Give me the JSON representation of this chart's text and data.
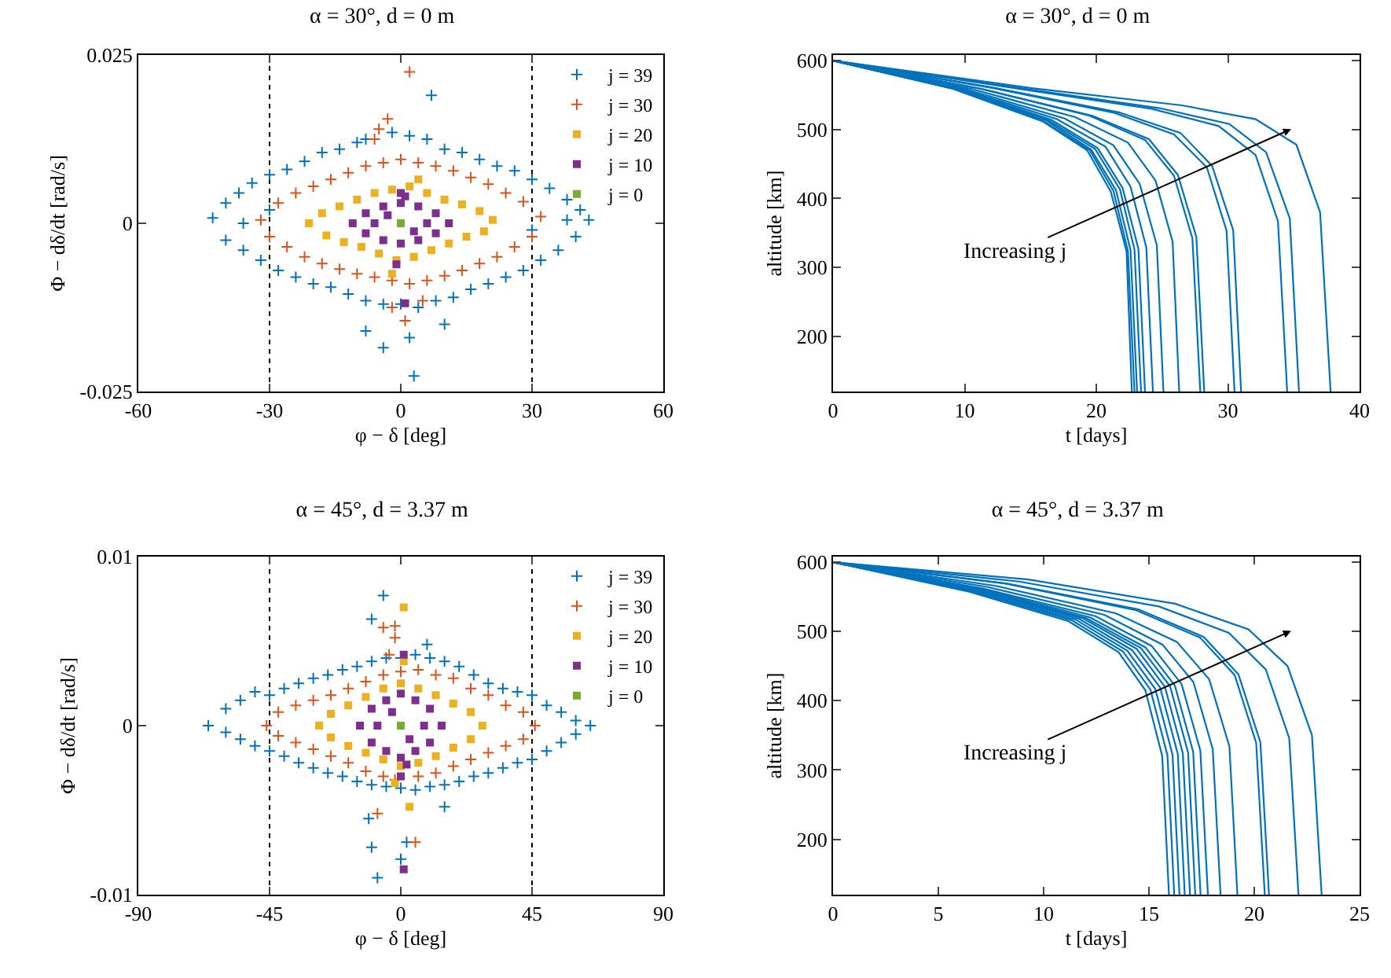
{
  "chart_data": [
    {
      "type": "scatter",
      "title": "α = 30°, d = 0 m",
      "xlabel": "φ − δ [deg]",
      "ylabel": "Φ − dδ/dt [rad/s]",
      "xlim": [
        -60,
        60
      ],
      "xticks": [
        -60,
        -30,
        0,
        30,
        60
      ],
      "ylim": [
        -0.025,
        0.025
      ],
      "yticks": [
        -0.025,
        0,
        0.025
      ],
      "legend": "top right",
      "ref_lines": [
        {
          "axis": "x",
          "value": -30,
          "color": "#000000",
          "line_style": "dotted"
        },
        {
          "axis": "x",
          "value": 30,
          "color": "#000000",
          "line_style": "dotted"
        }
      ],
      "series": [
        {
          "name": "j = 39",
          "color": "#0072bd",
          "marker": "cross",
          "x": [
            -43,
            -40,
            -37,
            -34,
            -30,
            -26,
            -22,
            -18,
            -14,
            -10,
            -8,
            -2,
            2,
            6,
            10,
            14,
            18,
            22,
            26,
            30,
            34,
            38,
            41,
            43,
            40,
            36,
            32,
            28,
            24,
            20,
            16,
            12,
            8,
            4,
            0,
            -4,
            -8,
            -12,
            -16,
            -20,
            -24,
            -28,
            -32,
            -36,
            -40,
            7,
            3,
            -4,
            2,
            -8,
            10,
            -30,
            30,
            -36,
            38
          ],
          "values": [
            0.0008,
            0.003,
            0.0045,
            0.006,
            0.0072,
            0.008,
            0.0092,
            0.0105,
            0.011,
            0.012,
            0.0125,
            0.0135,
            0.013,
            0.0125,
            0.011,
            0.0105,
            0.0095,
            0.0085,
            0.0078,
            0.0065,
            0.0052,
            0.0035,
            0.002,
            0.0005,
            -0.002,
            -0.004,
            -0.0055,
            -0.007,
            -0.008,
            -0.009,
            -0.0098,
            -0.011,
            -0.0115,
            -0.0125,
            -0.012,
            -0.012,
            -0.0115,
            -0.0105,
            -0.0095,
            -0.009,
            -0.008,
            -0.007,
            -0.0055,
            -0.004,
            -0.0025,
            0.019,
            -0.0227,
            -0.0185,
            -0.017,
            -0.016,
            -0.015,
            0.002,
            -0.001,
            0,
            0.0005
          ]
        },
        {
          "name": "j = 30",
          "color": "#d95319",
          "marker": "cross",
          "x": [
            -32,
            -28,
            -24,
            -20,
            -16,
            -12,
            -8,
            -4,
            0,
            4,
            8,
            12,
            16,
            20,
            24,
            28,
            32,
            30,
            26,
            22,
            18,
            14,
            10,
            6,
            2,
            -2,
            -6,
            -10,
            -14,
            -18,
            -22,
            -26,
            -30,
            2,
            -3,
            -5,
            -6,
            1,
            -2,
            5
          ],
          "values": [
            0.0005,
            0.003,
            0.0045,
            0.0055,
            0.0065,
            0.0075,
            0.0085,
            0.009,
            0.0095,
            0.009,
            0.0085,
            0.0078,
            0.0068,
            0.0058,
            0.0045,
            0.0032,
            0.001,
            -0.002,
            -0.0035,
            -0.005,
            -0.006,
            -0.007,
            -0.0078,
            -0.0085,
            -0.009,
            -0.0085,
            -0.008,
            -0.0075,
            -0.0068,
            -0.006,
            -0.005,
            -0.0035,
            -0.002,
            0.0225,
            0.0155,
            0.014,
            0.0125,
            -0.0145,
            -0.0125,
            -0.0115
          ]
        },
        {
          "name": "j = 20",
          "color": "#edb120",
          "marker": "square",
          "x": [
            -21,
            -18,
            -14,
            -10,
            -6,
            -2,
            2,
            6,
            10,
            14,
            18,
            21,
            19,
            15,
            11,
            7,
            3,
            -1,
            -5,
            -9,
            -13,
            -17,
            4,
            -2
          ],
          "values": [
            0,
            0.0015,
            0.0025,
            0.0035,
            0.0045,
            0.005,
            0.0055,
            0.0045,
            0.0035,
            0.0028,
            0.0018,
            0.0005,
            -0.0012,
            -0.002,
            -0.003,
            -0.004,
            -0.005,
            -0.0055,
            -0.0045,
            -0.0035,
            -0.0028,
            -0.0018,
            0.0065,
            -0.0075
          ]
        },
        {
          "name": "j = 10",
          "color": "#7e2f8e",
          "marker": "square",
          "x": [
            -11,
            -8,
            -4,
            0,
            4,
            8,
            11,
            8,
            4,
            0,
            -4,
            -8,
            -6,
            6,
            -3,
            3,
            -1,
            1,
            0,
            1
          ],
          "values": [
            0,
            0.0015,
            0.0025,
            0.003,
            0.0025,
            0.0015,
            0,
            -0.0015,
            -0.0025,
            -0.003,
            -0.0025,
            -0.0015,
            0,
            0,
            0.0012,
            -0.0012,
            -0.0061,
            -0.0119,
            0.0045,
            0.004
          ]
        },
        {
          "name": "j = 0",
          "color": "#77ac30",
          "marker": "square",
          "x": [
            0
          ],
          "values": [
            0
          ]
        }
      ]
    },
    {
      "type": "line",
      "title": "α = 30°, d = 0 m",
      "xlabel": "t [days]",
      "ylabel": "altitude [km]",
      "xlim": [
        0,
        40
      ],
      "xticks": [
        0,
        10,
        20,
        30,
        40
      ],
      "ylim": [
        120,
        608
      ],
      "yticks": [
        200,
        300,
        400,
        500,
        600
      ],
      "annotations": [
        "Increasing j"
      ],
      "series": [
        {
          "color": "#0072bd",
          "x": [
            0,
            9.1,
            15.9,
            19.3,
            21.1,
            22.3,
            22.7
          ],
          "values": [
            600,
            559,
            512,
            470,
            410,
            323,
            120
          ]
        },
        {
          "color": "#0072bd",
          "x": [
            0,
            9.2,
            16.0,
            19.5,
            21.3,
            22.4,
            22.9
          ],
          "values": [
            600,
            559,
            512,
            470,
            411,
            324,
            120
          ]
        },
        {
          "color": "#0072bd",
          "x": [
            0,
            9.2,
            16.2,
            19.6,
            21.5,
            22.6,
            23.1
          ],
          "values": [
            600,
            559,
            513,
            471,
            412,
            325,
            120
          ]
        },
        {
          "color": "#0072bd",
          "x": [
            0,
            9.4,
            16.4,
            19.9,
            21.8,
            22.9,
            23.4
          ],
          "values": [
            600,
            559,
            513,
            472,
            413,
            326,
            120
          ]
        },
        {
          "color": "#0072bd",
          "x": [
            0,
            9.5,
            16.6,
            20.1,
            22.0,
            23.2,
            23.7
          ],
          "values": [
            600,
            559,
            514,
            473,
            415,
            327,
            120
          ]
        },
        {
          "color": "#0072bd",
          "x": [
            0,
            9.7,
            17.0,
            20.7,
            22.6,
            23.8,
            24.3
          ],
          "values": [
            600,
            559,
            515,
            475,
            417,
            329,
            120
          ]
        },
        {
          "color": "#0072bd",
          "x": [
            0,
            10.0,
            17.6,
            21.3,
            23.3,
            24.6,
            25.1
          ],
          "values": [
            600,
            559,
            516,
            477,
            421,
            332,
            120
          ]
        },
        {
          "color": "#0072bd",
          "x": [
            0,
            10.5,
            18.4,
            22.4,
            24.5,
            25.8,
            26.3
          ],
          "values": [
            600,
            559,
            518,
            481,
            426,
            337,
            120
          ]
        },
        {
          "color": "#0072bd",
          "x": [
            0,
            11.2,
            19.5,
            23.7,
            25.9,
            27.3,
            27.9
          ],
          "values": [
            600,
            559,
            520,
            485,
            433,
            342,
            120
          ]
        },
        {
          "color": "#0072bd",
          "x": [
            0,
            11.3,
            19.7,
            24.0,
            26.2,
            27.6,
            28.2
          ],
          "values": [
            600,
            559,
            520,
            486,
            434,
            344,
            120
          ]
        },
        {
          "color": "#0072bd",
          "x": [
            0,
            12.2,
            21.4,
            25.9,
            28.4,
            29.9,
            30.5
          ],
          "values": [
            600,
            560,
            524,
            493,
            445,
            353,
            120
          ]
        },
        {
          "color": "#0072bd",
          "x": [
            0,
            12.4,
            21.7,
            26.4,
            28.8,
            30.4,
            31.0
          ],
          "values": [
            600,
            560,
            525,
            495,
            447,
            354,
            120
          ]
        },
        {
          "color": "#0072bd",
          "x": [
            0,
            13.8,
            24.2,
            29.3,
            32.1,
            33.8,
            34.5
          ],
          "values": [
            600,
            560,
            530,
            505,
            463,
            367,
            120
          ]
        },
        {
          "color": "#0072bd",
          "x": [
            0,
            14.2,
            24.8,
            30.1,
            32.9,
            34.7,
            35.4
          ],
          "values": [
            600,
            560,
            531,
            508,
            467,
            371,
            120
          ]
        },
        {
          "color": "#0072bd",
          "x": [
            0,
            15.1,
            26.5,
            32.1,
            35.2,
            37.0,
            37.8
          ],
          "values": [
            600,
            560,
            535,
            515,
            478,
            380,
            120
          ]
        }
      ]
    },
    {
      "type": "scatter",
      "title": "α = 45°, d = 3.37 m",
      "xlabel": "φ − δ [deg]",
      "ylabel": "Φ − dδ/dt [rad/s]",
      "xlim": [
        -90,
        90
      ],
      "xticks": [
        -90,
        -45,
        0,
        45,
        90
      ],
      "ylim": [
        -0.01,
        0.01
      ],
      "yticks": [
        -0.01,
        0,
        0.01
      ],
      "legend": "top right",
      "ref_lines": [
        {
          "axis": "x",
          "value": -45,
          "color": "#000000",
          "line_style": "dotted"
        },
        {
          "axis": "x",
          "value": 45,
          "color": "#000000",
          "line_style": "dotted"
        }
      ],
      "series": [
        {
          "name": "j = 39",
          "color": "#0072bd",
          "marker": "cross",
          "x": [
            -66,
            -60,
            -55,
            -50,
            -45,
            -40,
            -35,
            -30,
            -25,
            -20,
            -15,
            -10,
            -5,
            0,
            5,
            10,
            15,
            20,
            25,
            30,
            35,
            40,
            45,
            50,
            55,
            60,
            65,
            60,
            55,
            50,
            45,
            40,
            35,
            30,
            25,
            20,
            15,
            10,
            5,
            0,
            -5,
            -10,
            -15,
            -20,
            -25,
            -30,
            -35,
            -40,
            -45,
            -50,
            -55,
            -60,
            -6,
            -10,
            -10,
            -8,
            2,
            -11,
            0,
            15,
            9
          ],
          "values": [
            0,
            0.001,
            0.0015,
            0.002,
            0.0018,
            0.0022,
            0.0025,
            0.0028,
            0.003,
            0.0033,
            0.0035,
            0.0038,
            0.004,
            0.004,
            0.0042,
            0.004,
            0.0038,
            0.0035,
            0.003,
            0.0025,
            0.0022,
            0.002,
            0.0018,
            0.0012,
            0.0008,
            0.0003,
            0,
            -0.0005,
            -0.001,
            -0.0015,
            -0.002,
            -0.0022,
            -0.0025,
            -0.0028,
            -0.003,
            -0.0033,
            -0.0035,
            -0.0036,
            -0.0038,
            -0.0037,
            -0.0036,
            -0.0035,
            -0.0033,
            -0.003,
            -0.0028,
            -0.0025,
            -0.0022,
            -0.0018,
            -0.0015,
            -0.0012,
            -0.0008,
            -0.0004,
            0.0077,
            0.0063,
            -0.0072,
            -0.009,
            -0.0069,
            -0.0055,
            -0.0079,
            -0.0048,
            0.0048
          ]
        },
        {
          "name": "j = 30",
          "color": "#d95319",
          "marker": "cross",
          "x": [
            -46,
            -42,
            -36,
            -30,
            -24,
            -18,
            -12,
            -6,
            0,
            6,
            12,
            18,
            24,
            30,
            36,
            42,
            46,
            42,
            36,
            30,
            24,
            18,
            12,
            6,
            -2,
            -6,
            -12,
            -18,
            -24,
            -30,
            -36,
            -42,
            -6,
            -2,
            -2,
            5,
            -8,
            -4
          ],
          "values": [
            0,
            0.0008,
            0.0012,
            0.0015,
            0.0018,
            0.0022,
            0.0026,
            0.003,
            0.0032,
            0.0033,
            0.003,
            0.0028,
            0.0022,
            0.0018,
            0.0012,
            0.0008,
            0,
            -0.0008,
            -0.0012,
            -0.0016,
            -0.002,
            -0.0024,
            -0.0028,
            -0.003,
            -0.0032,
            -0.003,
            -0.0027,
            -0.0022,
            -0.0018,
            -0.0014,
            -0.001,
            -0.0006,
            0.0058,
            0.0059,
            0.0052,
            -0.0069,
            -0.0052,
            0.0042
          ]
        },
        {
          "name": "j = 20",
          "color": "#edb120",
          "marker": "square",
          "x": [
            -28,
            -24,
            -18,
            -12,
            -6,
            0,
            6,
            12,
            18,
            24,
            28,
            24,
            18,
            12,
            6,
            0,
            -6,
            -12,
            -18,
            -24,
            1,
            3,
            -2,
            1
          ],
          "values": [
            0,
            0.0007,
            0.0012,
            0.0017,
            0.0022,
            0.0025,
            0.0022,
            0.0018,
            0.0013,
            0.0008,
            0,
            -0.0008,
            -0.0013,
            -0.0018,
            -0.0022,
            -0.0024,
            -0.002,
            -0.0016,
            -0.0012,
            -0.0007,
            0.007,
            -0.0048,
            -0.0034,
            0.0038
          ]
        },
        {
          "name": "j = 10",
          "color": "#7e2f8e",
          "marker": "square",
          "x": [
            -14,
            -10,
            -5,
            0,
            5,
            10,
            14,
            10,
            5,
            0,
            -5,
            -10,
            -8,
            8,
            -3,
            3,
            1,
            0,
            2,
            1
          ],
          "values": [
            0,
            0.001,
            0.0015,
            0.0019,
            0.0015,
            0.001,
            0,
            -0.001,
            -0.0015,
            -0.0019,
            -0.0015,
            -0.001,
            0,
            0,
            0.0008,
            -0.0008,
            0.0042,
            -0.003,
            -0.0023,
            -0.0085
          ]
        },
        {
          "name": "j = 0",
          "color": "#77ac30",
          "marker": "square",
          "x": [
            0
          ],
          "values": [
            0
          ]
        }
      ]
    },
    {
      "type": "line",
      "title": "α = 45°, d = 3.37 m",
      "xlabel": "t [days]",
      "ylabel": "altitude [km]",
      "xlim": [
        0,
        25
      ],
      "xticks": [
        0,
        5,
        10,
        15,
        20,
        25
      ],
      "ylim": [
        120,
        608
      ],
      "yticks": [
        200,
        300,
        400,
        500,
        600
      ],
      "annotations": [
        "Increasing j"
      ],
      "series": [
        {
          "color": "#0072bd",
          "x": [
            0,
            6.38,
            11.17,
            13.56,
            14.83,
            15.63,
            15.95
          ],
          "values": [
            600,
            558,
            515,
            470,
            415,
            320,
            120
          ]
        },
        {
          "color": "#0072bd",
          "x": [
            0,
            6.48,
            11.34,
            13.77,
            15.07,
            15.88,
            16.2
          ],
          "values": [
            600,
            559,
            516,
            471,
            416,
            321,
            120
          ]
        },
        {
          "color": "#0072bd",
          "x": [
            0,
            6.58,
            11.52,
            13.98,
            15.3,
            16.12,
            16.45
          ],
          "values": [
            600,
            559,
            517,
            472,
            417,
            322,
            120
          ]
        },
        {
          "color": "#0072bd",
          "x": [
            0,
            6.68,
            11.69,
            14.2,
            15.53,
            16.37,
            16.7
          ],
          "values": [
            600,
            560,
            518,
            473,
            419,
            323,
            120
          ]
        },
        {
          "color": "#0072bd",
          "x": [
            0,
            6.78,
            11.87,
            14.41,
            15.76,
            16.61,
            16.95
          ],
          "values": [
            600,
            560,
            519,
            475,
            420,
            324,
            120
          ]
        },
        {
          "color": "#0072bd",
          "x": [
            0,
            6.88,
            12.04,
            14.62,
            16.0,
            16.86,
            17.2
          ],
          "values": [
            600,
            561,
            519,
            476,
            421,
            325,
            120
          ]
        },
        {
          "color": "#0072bd",
          "x": [
            0,
            6.98,
            12.22,
            14.83,
            16.23,
            17.1,
            17.45
          ],
          "values": [
            600,
            562,
            520,
            477,
            422,
            326,
            120
          ]
        },
        {
          "color": "#0072bd",
          "x": [
            0,
            7.12,
            12.46,
            15.13,
            16.55,
            17.44,
            17.8
          ],
          "values": [
            600,
            562,
            522,
            479,
            424,
            328,
            120
          ]
        },
        {
          "color": "#0072bd",
          "x": [
            0,
            7.36,
            12.88,
            15.64,
            17.11,
            18.03,
            18.4
          ],
          "values": [
            600,
            564,
            524,
            481,
            427,
            330,
            120
          ]
        },
        {
          "color": "#0072bd",
          "x": [
            0,
            7.68,
            13.44,
            16.32,
            17.86,
            18.82,
            19.2
          ],
          "values": [
            600,
            566,
            526,
            485,
            431,
            334,
            120
          ]
        },
        {
          "color": "#0072bd",
          "x": [
            0,
            8.2,
            14.35,
            17.43,
            19.07,
            20.09,
            20.5
          ],
          "values": [
            600,
            569,
            531,
            491,
            437,
            339,
            120
          ]
        },
        {
          "color": "#0072bd",
          "x": [
            0,
            8.28,
            14.49,
            17.6,
            19.25,
            20.29,
            20.7
          ],
          "values": [
            600,
            569,
            532,
            492,
            438,
            340,
            120
          ]
        },
        {
          "color": "#0072bd",
          "x": [
            0,
            8.84,
            15.47,
            18.79,
            20.55,
            21.66,
            22.1
          ],
          "values": [
            600,
            572,
            536,
            498,
            445,
            346,
            120
          ]
        },
        {
          "color": "#0072bd",
          "x": [
            0,
            9.28,
            16.24,
            19.72,
            21.58,
            22.74,
            23.2
          ],
          "values": [
            600,
            575,
            540,
            503,
            450,
            350,
            120
          ]
        }
      ]
    }
  ]
}
